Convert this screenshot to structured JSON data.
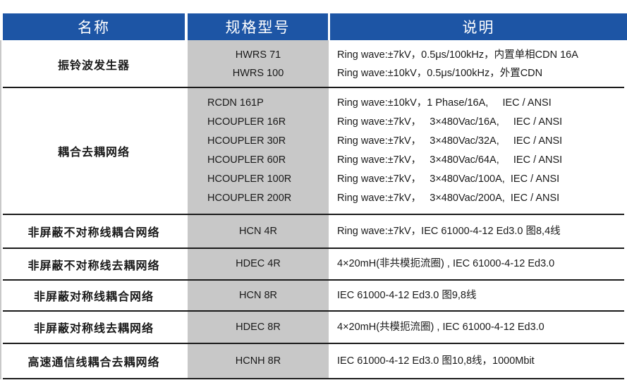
{
  "header": {
    "name": "名称",
    "model": "规格型号",
    "description": "说明"
  },
  "header_color": "#1d55a5",
  "rows": [
    {
      "name": "振铃波发生器",
      "models": [
        "HWRS 71",
        "HWRS 100"
      ],
      "descriptions": [
        "Ring wave:±7kV，0.5μs/100kHz，内置单相CDN 16A",
        "Ring wave:±10kV，0.5μs/100kHz，外置CDN"
      ]
    },
    {
      "name": "耦合去耦网络",
      "models": [
        "RCDN 161P",
        "HCOUPLER 16R",
        "HCOUPLER 30R",
        "HCOUPLER 60R",
        "HCOUPLER 100R",
        "HCOUPLER 200R"
      ],
      "descriptions": [
        "Ring wave:±10kV，1 Phase/16A,     IEC / ANSI",
        "Ring wave:±7kV，   3×480Vac/16A,     IEC / ANSI",
        "Ring wave:±7kV，   3×480Vac/32A,     IEC / ANSI",
        "Ring wave:±7kV，   3×480Vac/64A,     IEC / ANSI",
        "Ring wave:±7kV，   3×480Vac/100A,  IEC / ANSI",
        "Ring wave:±7kV，   3×480Vac/200A,  IEC / ANSI"
      ]
    },
    {
      "name": "非屏蔽不对称线耦合网络",
      "models": [
        "HCN 4R"
      ],
      "descriptions": [
        "Ring wave:±7kV，IEC 61000-4-12 Ed3.0 图8,4线"
      ]
    },
    {
      "name": "非屏蔽不对称线去耦网络",
      "models": [
        "HDEC 4R"
      ],
      "descriptions": [
        "4×20mH(非共模扼流圈) , IEC 61000-4-12 Ed3.0"
      ]
    },
    {
      "name": "非屏蔽对称线耦合网络",
      "models": [
        "HCN 8R"
      ],
      "descriptions": [
        "IEC 61000-4-12 Ed3.0 图9,8线"
      ]
    },
    {
      "name": "非屏蔽对称线去耦网络",
      "models": [
        "HDEC 8R"
      ],
      "descriptions": [
        "4×20mH(共模扼流圈) , IEC 61000-4-12 Ed3.0"
      ]
    },
    {
      "name": "高速通信线耦合去耦网络",
      "models": [
        "HCNH 8R"
      ],
      "descriptions": [
        "IEC 61000-4-12 Ed3.0 图10,8线，1000Mbit"
      ]
    }
  ]
}
